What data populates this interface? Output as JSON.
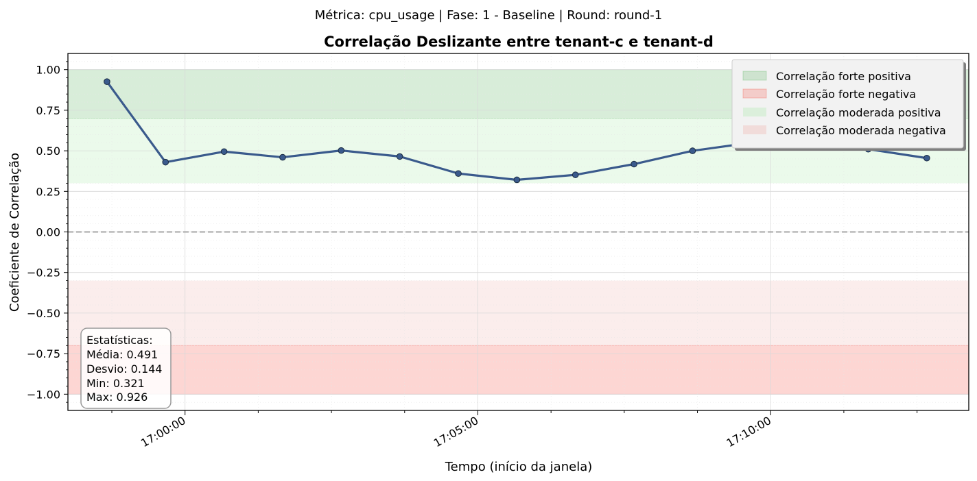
{
  "suptitle": "Métrica: cpu_usage | Fase: 1 - Baseline | Round: round-1",
  "chart_data": {
    "type": "line",
    "title": "Correlação Deslizante entre tenant-c e tenant-d",
    "xlabel": "Tempo (início da janela)",
    "ylabel": "Coeficiente de Correlação",
    "ylim": [
      -1.1,
      1.1
    ],
    "xlim": [
      "16:58:00",
      "17:13:23"
    ],
    "yticks": [
      -1.0,
      -0.75,
      -0.5,
      -0.25,
      0.0,
      0.25,
      0.5,
      0.75,
      1.0
    ],
    "ytick_labels": [
      "−1.00",
      "−0.75",
      "−0.50",
      "−0.25",
      "0.00",
      "0.25",
      "0.50",
      "0.75",
      "1.00"
    ],
    "xticks": [
      "17:00:00",
      "17:05:00",
      "17:10:00"
    ],
    "grid": true,
    "legend_position": "top-right",
    "colors": {
      "line": "#3a5a8c",
      "marker_edge": "#1a2a40",
      "strong_pos": "#4caf50",
      "strong_neg": "#f44336",
      "mod_pos": "#c8f0c8",
      "mod_neg": "#f0c8c4"
    },
    "bands": [
      {
        "name": "Correlação forte positiva",
        "from": 0.7,
        "to": 1.0,
        "color": "#4caf50",
        "opacity": 0.22
      },
      {
        "name": "Correlação forte negativa",
        "from": -1.0,
        "to": -0.7,
        "color": "#f44336",
        "opacity": 0.22
      },
      {
        "name": "Correlação moderada positiva",
        "from": 0.3,
        "to": 0.7,
        "color": "#b8ecb8",
        "opacity": 0.28
      },
      {
        "name": "Correlação moderada negativa",
        "from": -0.7,
        "to": -0.3,
        "color": "#f0c0bc",
        "opacity": 0.28
      }
    ],
    "series": [
      {
        "x": [
          "16:58:40",
          "16:59:40",
          "17:00:40",
          "17:01:40",
          "17:02:40",
          "17:03:40",
          "17:04:40",
          "17:05:40",
          "17:06:40",
          "17:07:40",
          "17:08:40",
          "17:09:40",
          "17:10:40",
          "17:11:40",
          "17:12:40"
        ],
        "values": [
          0.926,
          0.43,
          0.495,
          0.46,
          0.502,
          0.465,
          0.36,
          0.321,
          0.352,
          0.418,
          0.5,
          0.55,
          0.6,
          0.51,
          0.455
        ]
      }
    ],
    "stats": {
      "heading": "Estatísticas:",
      "lines": [
        "Média: 0.491",
        "Desvio: 0.144",
        "Min: 0.321",
        "Max: 0.926"
      ]
    }
  }
}
